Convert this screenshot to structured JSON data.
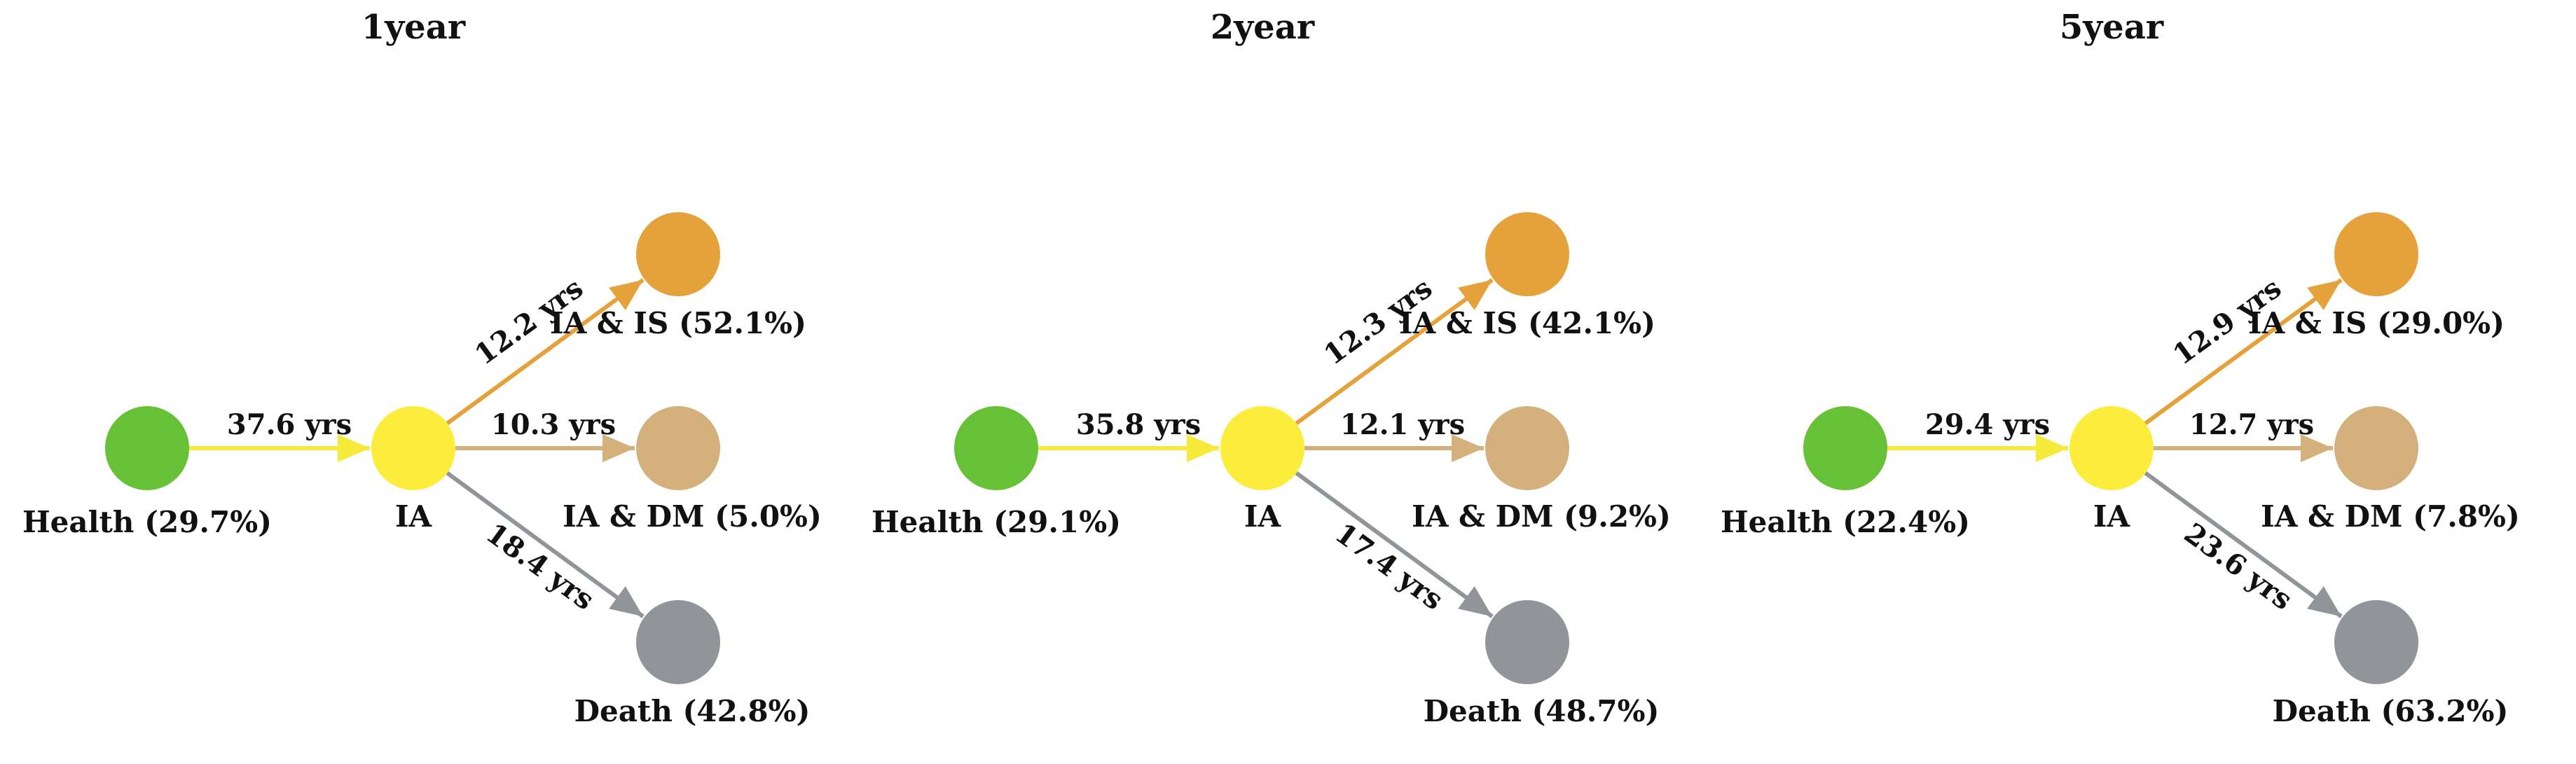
{
  "colors": {
    "health": "#66c136",
    "ia": "#fcec3c",
    "is": "#e6a23a",
    "dm": "#d4b07c",
    "death": "#919499",
    "edge_health_ia": "#f6ea3a",
    "edge_ia_is": "#e6a23a",
    "edge_ia_dm": "#d4b07c",
    "edge_ia_death": "#919499"
  },
  "panels": [
    {
      "title": "1year",
      "nodes": {
        "health": "Health (29.7%)",
        "ia": "IA",
        "is": "IA & IS (52.1%)",
        "dm": "IA & DM (5.0%)",
        "death": "Death (42.8%)"
      },
      "edges": {
        "health_ia": "37.6 yrs",
        "ia_is": "12.2 yrs",
        "ia_dm": "10.3 yrs",
        "ia_death": "18.4 yrs"
      }
    },
    {
      "title": "2year",
      "nodes": {
        "health": "Health (29.1%)",
        "ia": "IA",
        "is": "IA & IS (42.1%)",
        "dm": "IA & DM (9.2%)",
        "death": "Death (48.7%)"
      },
      "edges": {
        "health_ia": "35.8 yrs",
        "ia_is": "12.3 yrs",
        "ia_dm": "12.1 yrs",
        "ia_death": "17.4 yrs"
      }
    },
    {
      "title": "5year",
      "nodes": {
        "health": "Health (22.4%)",
        "ia": "IA",
        "is": "IA & IS (29.0%)",
        "dm": "IA & DM (7.8%)",
        "death": "Death (63.2%)"
      },
      "edges": {
        "health_ia": "29.4 yrs",
        "ia_is": "12.9 yrs",
        "ia_dm": "12.7 yrs",
        "ia_death": "23.6 yrs"
      }
    }
  ]
}
